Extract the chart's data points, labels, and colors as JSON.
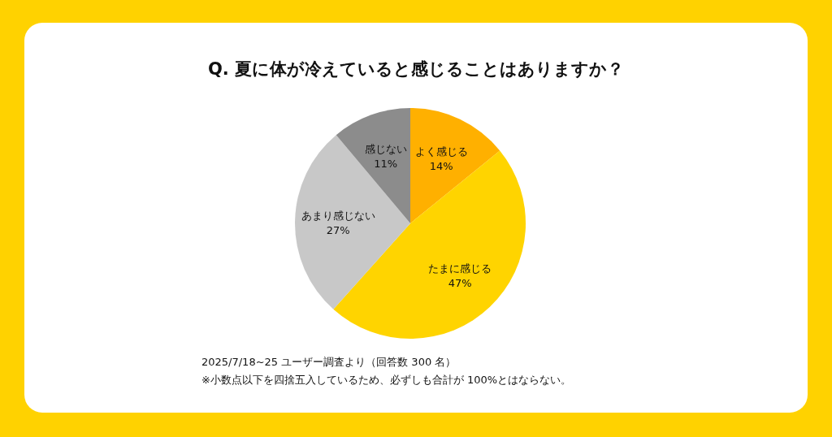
{
  "chart_data": {
    "type": "pie",
    "title": "Q. 夏に体が冷えていると感じることはありますか？",
    "categories": [
      "よく感じる",
      "たまに感じる",
      "あまり感じない",
      "感じない"
    ],
    "values": [
      14,
      47,
      27,
      11
    ],
    "value_labels": [
      "14%",
      "47%",
      "27%",
      "11%"
    ],
    "colors": [
      "#ffb000",
      "#ffd400",
      "#c8c8c8",
      "#8c8c8c"
    ],
    "annotations": [
      "2025/7/18~25 ユーザー調査より（回答数 300 名）",
      "※小数点以下を四捨五入しているため、必ずしも合計が 100%とはならない。"
    ]
  }
}
